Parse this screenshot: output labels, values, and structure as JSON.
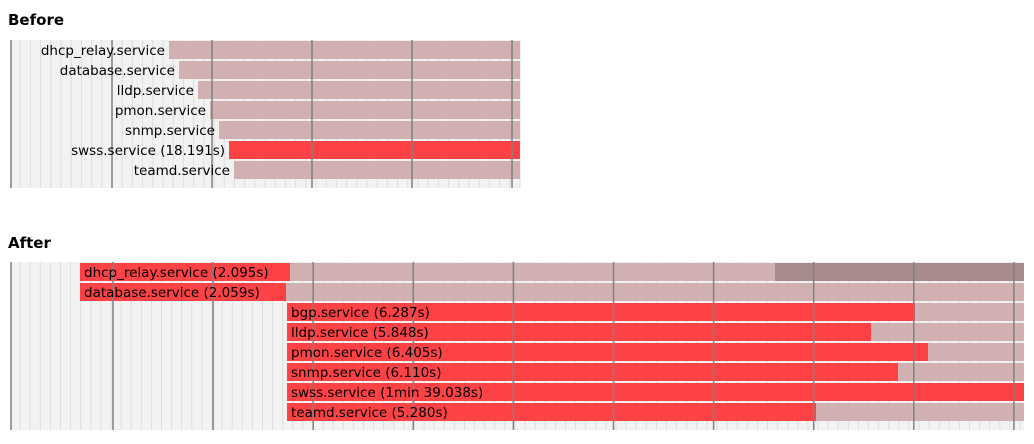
{
  "sections": {
    "before_title": "Before",
    "after_title": "After"
  },
  "colors": {
    "background": "#f2f2f2",
    "gridline_minor": "#dddddd",
    "gridline_major": "#808080",
    "inactive_bar": "#d1b0b1",
    "active_bar": "#fc4245",
    "dark_segment": "#a88b8c",
    "row_separator": "#ffffff"
  },
  "chart_data": [
    {
      "type": "bar",
      "name": "Before",
      "rows": [
        {
          "label": "dhcp_relay.service",
          "active": null
        },
        {
          "label": "database.service",
          "active": null
        },
        {
          "label": "lldp.service",
          "active": null
        },
        {
          "label": "pmon.service",
          "active": null
        },
        {
          "label": "snmp.service",
          "active": null
        },
        {
          "label": "swss.service (18.191s)",
          "active": 18.191
        },
        {
          "label": "teamd.service",
          "active": null
        }
      ]
    },
    {
      "type": "bar",
      "name": "After",
      "rows": [
        {
          "label": "dhcp_relay.service (2.095s)",
          "active": 2.095
        },
        {
          "label": "database.service (2.059s)",
          "active": 2.059
        },
        {
          "label": "bgp.service (6.287s)",
          "active": 6.287
        },
        {
          "label": "lldp.service (5.848s)",
          "active": 5.848
        },
        {
          "label": "pmon.service (6.405s)",
          "active": 6.405
        },
        {
          "label": "snmp.service (6.110s)",
          "active": 6.11
        },
        {
          "label": "swss.service (1min 39.038s)",
          "active": 99.038
        },
        {
          "label": "teamd.service (5.280s)",
          "active": 5.28
        }
      ]
    }
  ]
}
